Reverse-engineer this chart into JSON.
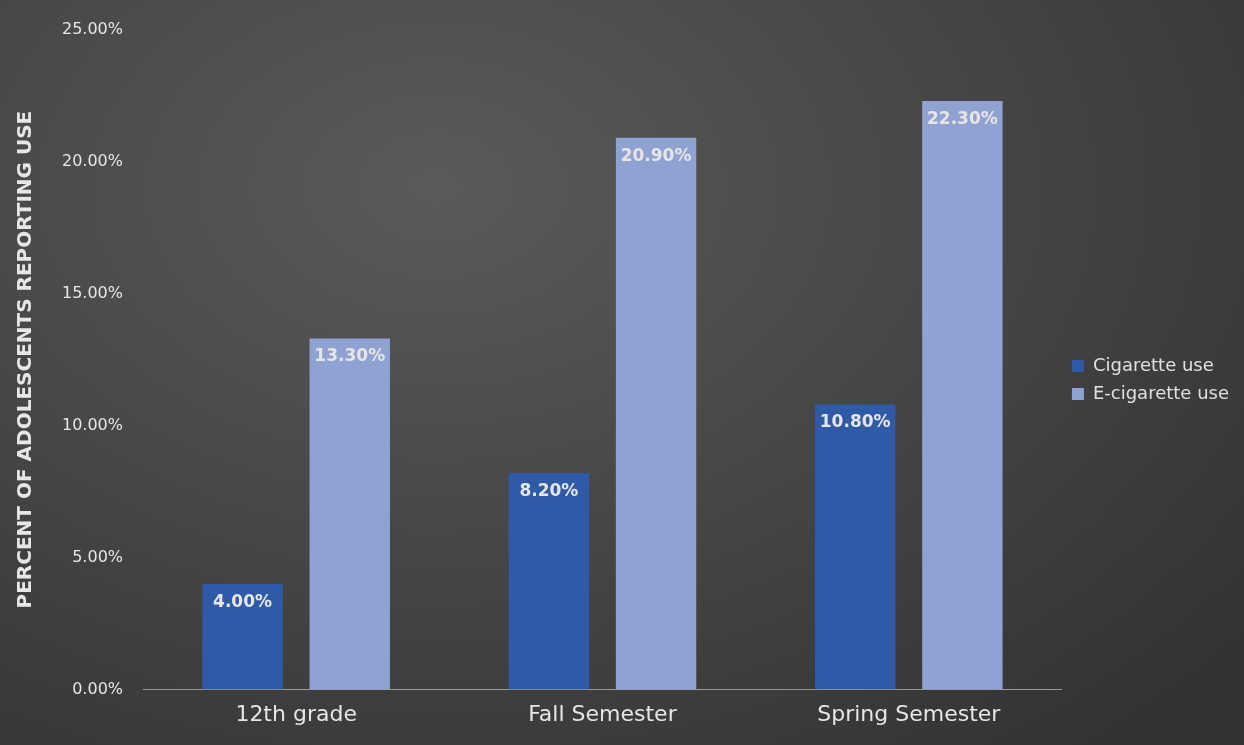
{
  "chart_data": {
    "type": "bar",
    "ylabel": "PERCENT OF ADOLESCENTS REPORTING USE",
    "categories": [
      "12th grade",
      "Fall Semester",
      "Spring Semester"
    ],
    "series": [
      {
        "name": "Cigarette use",
        "color": "#2f5aa8",
        "values": [
          4.0,
          8.2,
          10.8
        ],
        "value_labels": [
          "4.00%",
          "8.20%",
          "10.80%"
        ]
      },
      {
        "name": "E-cigarette use",
        "color": "#8fa2d2",
        "values": [
          13.3,
          20.9,
          22.3
        ],
        "value_labels": [
          "13.30%",
          "20.90%",
          "22.30%"
        ]
      }
    ],
    "ylim": [
      0,
      25
    ],
    "yticks": [
      {
        "value": 0,
        "label": "0.00%"
      },
      {
        "value": 5,
        "label": "5.00%"
      },
      {
        "value": 10,
        "label": "10.00%"
      },
      {
        "value": 15,
        "label": "15.00%"
      },
      {
        "value": 20,
        "label": "20.00%"
      },
      {
        "value": 25,
        "label": "25.00%"
      }
    ],
    "grid": false,
    "legend": "right"
  }
}
